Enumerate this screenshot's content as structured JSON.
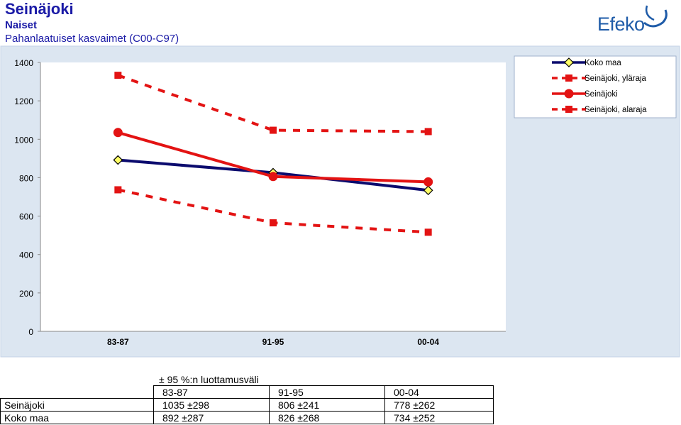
{
  "header": {
    "title": "Seinäjoki",
    "subtitle": "Naiset",
    "description": "Pahanlaatuiset kasvaimet (C00-C97)",
    "logo_text": "Efeko"
  },
  "colors": {
    "title": "#1a1aa6",
    "koko_maa": "#0b0b6e",
    "seinajoki": "#e31313",
    "plot_bg": "#ffffff",
    "frame_bg": "#dce6f1",
    "logo": "#1e5ba8"
  },
  "chart_data": {
    "type": "line",
    "categories": [
      "83-87",
      "91-95",
      "00-04"
    ],
    "ylim": [
      0,
      1400
    ],
    "yticks": [
      0,
      200,
      400,
      600,
      800,
      1000,
      1200,
      1400
    ],
    "grid": false,
    "legend_position": "top-right",
    "series": [
      {
        "name": "Koko maa",
        "values": [
          892,
          826,
          734
        ],
        "style": "solid",
        "marker": "diamond"
      },
      {
        "name": "Seinäjoki, yläraja",
        "values": [
          1333,
          1047,
          1040
        ],
        "style": "dashed",
        "marker": "square"
      },
      {
        "name": "Seinäjoki",
        "values": [
          1035,
          806,
          778
        ],
        "style": "solid",
        "marker": "circle"
      },
      {
        "name": "Seinäjoki, alaraja",
        "values": [
          737,
          565,
          516
        ],
        "style": "dashed",
        "marker": "square"
      }
    ]
  },
  "table": {
    "caption": "± 95 %:n luottamusväli",
    "headers": [
      "",
      "83-87",
      "91-95",
      "00-04"
    ],
    "rows": [
      [
        "Seinäjoki",
        "1035 ±298",
        "806 ±241",
        "778 ±262"
      ],
      [
        "Koko maa",
        "892 ±287",
        "826 ±268",
        "734 ±252"
      ]
    ]
  }
}
